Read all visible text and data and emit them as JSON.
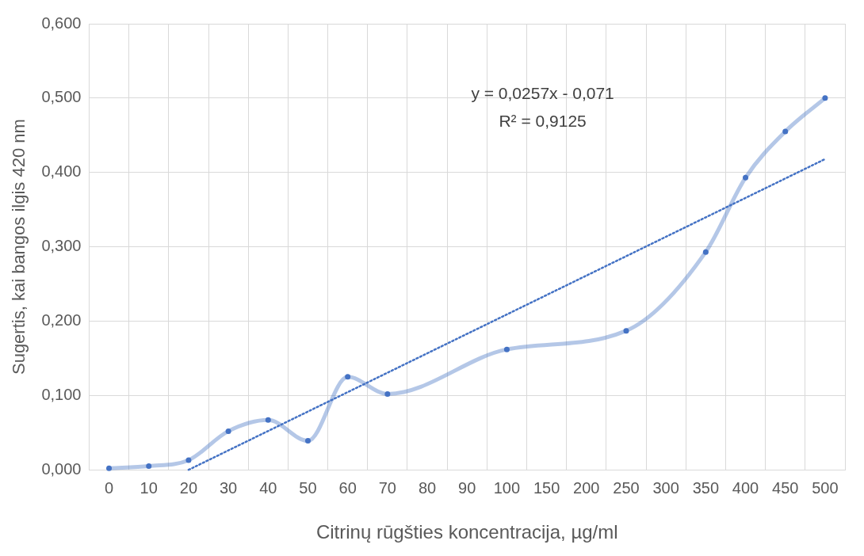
{
  "chart_data": {
    "type": "line",
    "xlabel": "Citrinų rūgšties koncentracija, µg/ml",
    "ylabel": "Sugertis, kai bangos ilgis 420 nm",
    "categories": [
      "0",
      "10",
      "20",
      "30",
      "40",
      "50",
      "60",
      "70",
      "80",
      "90",
      "100",
      "150",
      "200",
      "250",
      "300",
      "350",
      "400",
      "450",
      "500"
    ],
    "series": [
      {
        "color": "#4472c4",
        "values": [
          0.002,
          0.005,
          0.013,
          0.052,
          0.067,
          0.039,
          0.125,
          0.102,
          null,
          null,
          0.162,
          null,
          null,
          0.187,
          null,
          0.293,
          0.393,
          0.455,
          0.5
        ],
        "marker": "circle",
        "line_style": "solid"
      },
      {
        "color": "#4472c4",
        "x": [
          "20",
          "500"
        ],
        "values": [
          0.0,
          0.418
        ],
        "marker": "none",
        "line_style": "dotted"
      }
    ],
    "ylim": [
      0,
      0.6
    ],
    "yticks": [
      {
        "value": 0,
        "label": "0,000"
      },
      {
        "value": 0.1,
        "label": "0,100"
      },
      {
        "value": 0.2,
        "label": "0,200"
      },
      {
        "value": 0.3,
        "label": "0,300"
      },
      {
        "value": 0.4,
        "label": "0,400"
      },
      {
        "value": 0.5,
        "label": "0,500"
      },
      {
        "value": 0.6,
        "label": "0,600"
      }
    ],
    "grid": true,
    "legend": false,
    "annotations": [
      "y = 0,0257x - 0,071",
      "R² = 0,9125"
    ]
  }
}
